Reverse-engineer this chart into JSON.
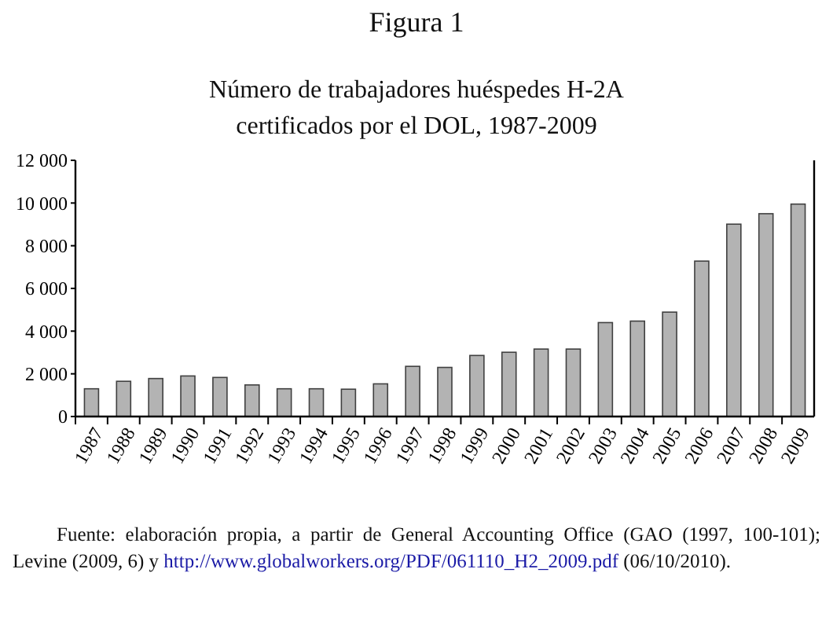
{
  "chart_data": {
    "type": "bar",
    "title": "Figura 1",
    "subtitle": "Número de trabajadores huéspedes H-2A certificados por el DOL, 1987-2009",
    "categories": [
      "1987",
      "1988",
      "1989",
      "1990",
      "1991",
      "1992",
      "1993",
      "1994",
      "1995",
      "1996",
      "1997",
      "1998",
      "1999",
      "2000",
      "2001",
      "2002",
      "2003",
      "2004",
      "2005",
      "2006",
      "2007",
      "2008",
      "2009"
    ],
    "values": [
      1300,
      1650,
      1780,
      1900,
      1830,
      1480,
      1300,
      1300,
      1280,
      1530,
      2350,
      2300,
      2860,
      3010,
      3160,
      3160,
      4400,
      4470,
      4890,
      7280,
      9010,
      9500,
      9950
    ],
    "color": "#b3b3b3",
    "ylim": [
      0,
      12000
    ],
    "yticks": [
      {
        "value": 0,
        "label": "0"
      },
      {
        "value": 2000,
        "label": "2 000"
      },
      {
        "value": 4000,
        "label": "4 000"
      },
      {
        "value": 6000,
        "label": "6 000"
      },
      {
        "value": 8000,
        "label": "8 000"
      },
      {
        "value": 10000,
        "label": "10 000"
      },
      {
        "value": 12000,
        "label": "12 000"
      }
    ],
    "annotations": [
      "Fuente: elaboración propia, a partir de General Accounting Office (GAO (1997, 100-101); Levine (2009, 6) y http://www.globalworkers.org/PDF/061110_H2_2009.pdf (06/10/2010)."
    ]
  }
}
